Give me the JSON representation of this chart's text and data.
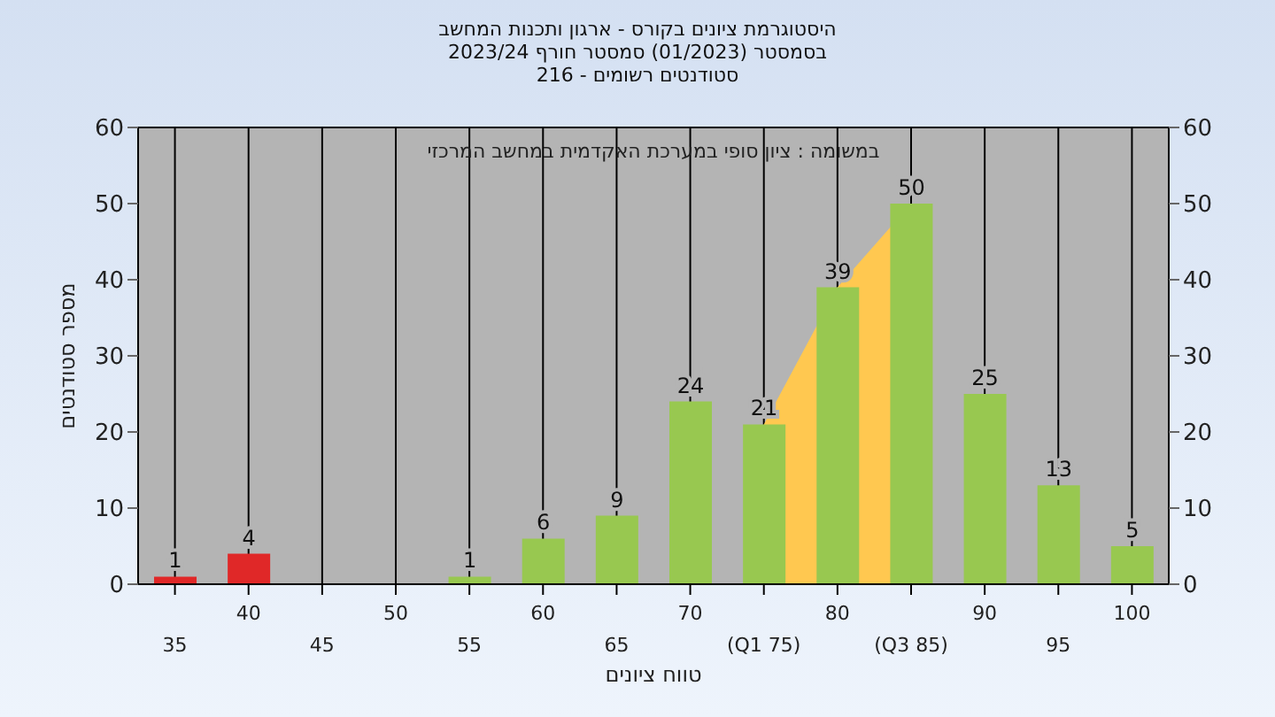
{
  "chart_data": {
    "type": "bar",
    "title": "היסטוגרמת ציונים בקורס - ארגון ותכנות המחשב\nבסמסטר  (01/2023)  סמסטר חורף 2023/24\nסטודנטים רשומים - 216",
    "xlabel": "טווח ציונים",
    "ylabel": "מספר סטודנטים",
    "annotations": [
      "במשומה : ציון סופי במערכת האקדמית במחשב המרכזי"
    ],
    "categories": [
      "35",
      "40",
      "45",
      "50",
      "55",
      "60",
      "65",
      "70",
      "(Q1 75)",
      "80",
      "(Q3 85)",
      "90",
      "95",
      "100"
    ],
    "series": [
      {
        "type": "area",
        "color": "#ffc850",
        "values": [
          null,
          null,
          null,
          null,
          null,
          null,
          null,
          null,
          21,
          39,
          50,
          null,
          null,
          null
        ]
      },
      {
        "colors": [
          "#e02828",
          "#e02828",
          "#98c850",
          "#98c850",
          "#98c850",
          "#98c850",
          "#98c850",
          "#98c850",
          "#98c850",
          "#98c850",
          "#98c850",
          "#98c850",
          "#98c850",
          "#98c850"
        ],
        "values": [
          1,
          4,
          0,
          0,
          1,
          6,
          9,
          24,
          21,
          39,
          50,
          25,
          13,
          5
        ],
        "value_labels": [
          "1",
          "4",
          null,
          null,
          "1",
          "6",
          "9",
          "24",
          "21",
          "39",
          "50",
          "25",
          "13",
          "5"
        ]
      }
    ],
    "ylim": [
      0,
      60
    ],
    "yticks": [
      0,
      10,
      20,
      30,
      40,
      50,
      60
    ],
    "y2lim": [
      0,
      60
    ],
    "y2ticks": [
      0,
      10,
      20,
      30,
      40,
      50,
      60
    ],
    "grid": true
  }
}
